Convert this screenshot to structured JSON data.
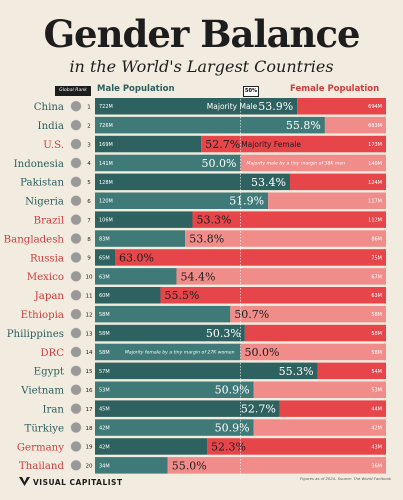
{
  "title": "Gender Balance",
  "subtitle": "in the World's Largest Countries",
  "header": {
    "rank_label": "Global Rank",
    "male_label": "Male Population",
    "female_label": "Female Population",
    "fifty_label": "50%"
  },
  "footer": {
    "brand": "VISUAL CAPITALIST",
    "note": "Figures as of 2024. Source: The World Factbook"
  },
  "colors": {
    "male": "#2e6261",
    "male_light": "#3f7a78",
    "female": "#e6454a",
    "female_light": "#f08d8a",
    "name_male": "#2e5f5e",
    "name_female": "#d33c3f",
    "background": "#f1ecdf"
  },
  "chart_data": {
    "type": "bar",
    "stacked": true,
    "orientation": "horizontal",
    "reference_line": 50,
    "xlim": [
      0,
      100
    ],
    "series": [
      {
        "name": "Male Population"
      },
      {
        "name": "Female Population"
      }
    ],
    "rows": [
      {
        "rank": "1",
        "country": "China",
        "male_pop": "722M",
        "female_pop": "694M",
        "pct": "53.9%",
        "pct_value": 53.9,
        "majority": "male",
        "flag": "china",
        "annotation": "Majority Male"
      },
      {
        "rank": "2",
        "country": "India",
        "male_pop": "726M",
        "female_pop": "683M",
        "pct": "55.8%",
        "pct_value": 55.8,
        "majority": "male",
        "flag": "india"
      },
      {
        "rank": "3",
        "country": "U.S.",
        "male_pop": "169M",
        "female_pop": "173M",
        "pct": "52.7%",
        "pct_value": 52.7,
        "majority": "female",
        "flag": "usa",
        "annotation": "Majority Female"
      },
      {
        "rank": "4",
        "country": "Indonesia",
        "male_pop": "141M",
        "female_pop": "140M",
        "pct": "50.0%",
        "pct_value": 50.0,
        "majority": "male",
        "flag": "indonesia",
        "annotation": "Majority male by a tiny margin of 38K men"
      },
      {
        "rank": "5",
        "country": "Pakistan",
        "male_pop": "128M",
        "female_pop": "124M",
        "pct": "53.4%",
        "pct_value": 53.4,
        "majority": "male",
        "flag": "pakistan"
      },
      {
        "rank": "6",
        "country": "Nigeria",
        "male_pop": "120M",
        "female_pop": "117M",
        "pct": "51.9%",
        "pct_value": 51.9,
        "majority": "male",
        "flag": "nigeria"
      },
      {
        "rank": "7",
        "country": "Brazil",
        "male_pop": "106M",
        "female_pop": "112M",
        "pct": "53.3%",
        "pct_value": 53.3,
        "majority": "female",
        "flag": "brazil"
      },
      {
        "rank": "8",
        "country": "Bangladesh",
        "male_pop": "83M",
        "female_pop": "86M",
        "pct": "53.8%",
        "pct_value": 53.8,
        "majority": "female",
        "flag": "bangladesh"
      },
      {
        "rank": "9",
        "country": "Russia",
        "male_pop": "65M",
        "female_pop": "75M",
        "pct": "63.0%",
        "pct_value": 63.0,
        "majority": "female",
        "flag": "russia"
      },
      {
        "rank": "10",
        "country": "Mexico",
        "male_pop": "63M",
        "female_pop": "67M",
        "pct": "54.4%",
        "pct_value": 54.4,
        "majority": "female",
        "flag": "mexico"
      },
      {
        "rank": "11",
        "country": "Japan",
        "male_pop": "60M",
        "female_pop": "63M",
        "pct": "55.5%",
        "pct_value": 55.5,
        "majority": "female",
        "flag": "japan"
      },
      {
        "rank": "12",
        "country": "Ethiopia",
        "male_pop": "58M",
        "female_pop": "58M",
        "pct": "50.7%",
        "pct_value": 50.7,
        "majority": "female",
        "flag": "ethiopia"
      },
      {
        "rank": "13",
        "country": "Philippines",
        "male_pop": "58M",
        "female_pop": "58M",
        "pct": "50.3%",
        "pct_value": 50.3,
        "majority": "male",
        "flag": "philippines"
      },
      {
        "rank": "14",
        "country": "DRC",
        "male_pop": "58M",
        "female_pop": "58M",
        "pct": "50.0%",
        "pct_value": 50.0,
        "majority": "female",
        "flag": "drc",
        "annotation": "Majority female by a tiny margin of 27K women"
      },
      {
        "rank": "15",
        "country": "Egypt",
        "male_pop": "57M",
        "female_pop": "54M",
        "pct": "55.3%",
        "pct_value": 55.3,
        "majority": "male",
        "flag": "egypt"
      },
      {
        "rank": "16",
        "country": "Vietnam",
        "male_pop": "53M",
        "female_pop": "53M",
        "pct": "50.9%",
        "pct_value": 50.9,
        "majority": "male",
        "flag": "vietnam"
      },
      {
        "rank": "17",
        "country": "Iran",
        "male_pop": "45M",
        "female_pop": "44M",
        "pct": "52.7%",
        "pct_value": 52.7,
        "majority": "male",
        "flag": "iran"
      },
      {
        "rank": "18",
        "country": "Türkiye",
        "male_pop": "42M",
        "female_pop": "42M",
        "pct": "50.9%",
        "pct_value": 50.9,
        "majority": "male",
        "flag": "turkiye"
      },
      {
        "rank": "19",
        "country": "Germany",
        "male_pop": "42M",
        "female_pop": "43M",
        "pct": "52.3%",
        "pct_value": 52.3,
        "majority": "female",
        "flag": "germany"
      },
      {
        "rank": "20",
        "country": "Thailand",
        "male_pop": "34M",
        "female_pop": "36M",
        "pct": "55.0%",
        "pct_value": 55.0,
        "majority": "female",
        "flag": "thailand"
      }
    ]
  }
}
